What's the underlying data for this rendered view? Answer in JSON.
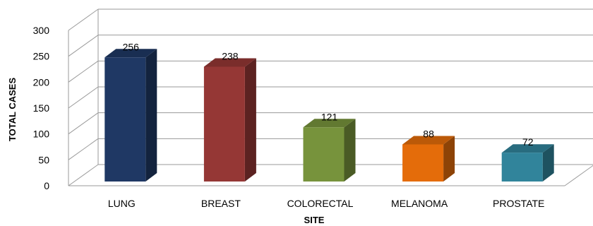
{
  "chart_data": {
    "type": "bar",
    "categories": [
      "LUNG",
      "BREAST",
      "COLORECTAL",
      "MELANOMA",
      "PROSTATE"
    ],
    "values": [
      256,
      238,
      121,
      88,
      72
    ],
    "data_labels": [
      "256",
      "238",
      "121",
      "88",
      "72"
    ],
    "xlabel": "SITE",
    "ylabel": "TOTAL CASES",
    "ylim": [
      0,
      300
    ],
    "yticks": [
      0,
      50,
      100,
      150,
      200,
      250,
      300
    ],
    "ytick_labels": [
      "0",
      "50",
      "100",
      "150",
      "200",
      "250",
      "300"
    ],
    "grid": true,
    "style": "3d-column",
    "colors": [
      "#1f3864",
      "#953735",
      "#77933c",
      "#e46c0a",
      "#31849b"
    ]
  }
}
